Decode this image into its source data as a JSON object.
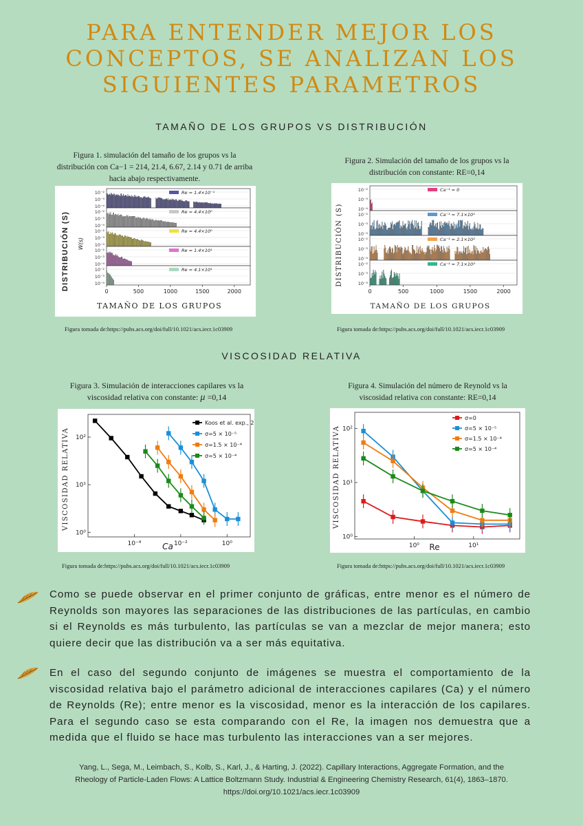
{
  "header": {
    "title_lines": [
      "PARA ENTENDER MEJOR LOS",
      "CONCEPTOS, SE ANALIZAN LOS",
      "SIGUIENTES PARAMETROS"
    ]
  },
  "sections": {
    "s1": "TAMAÑO DE LOS GRUPOS VS DISTRIBUCIÓN",
    "s2": "VISCOSIDAD RELATIVA"
  },
  "figures": {
    "f1": {
      "caption": "Figura 1. simulación del tamaño de los grupos vs la distribución con Ca−1 = 214, 21.4, 6.67, 2.14 y 0.71 de arriba hacia abajo respectivamente.",
      "ylabel": "DISTRIBUCIÓN (S)",
      "xlabel": "TAMAÑO DE LOS GRUPOS",
      "inner_ylabel": "W(s)",
      "legends": [
        "Re = 1.4×10⁻¹",
        "Re = 4.4×10⁰",
        "Re = 4.4×10⁰",
        "Re = 1.4×10¹",
        "Re = 4.1×10¹"
      ],
      "colors": [
        "#5555aa",
        "#c8c8c8",
        "#f0e040",
        "#e070d8",
        "#a8d8c0"
      ],
      "xticks": [
        "0",
        "500",
        "1000",
        "1500",
        "2000"
      ],
      "yticks": [
        "10⁻²",
        "10⁻³",
        "10⁻⁴"
      ],
      "source": "Figura tomada de:https://pubs.acs.org/doi/full/10.1021/acs.iecr.1c03909"
    },
    "f2": {
      "caption": "Figura 2. Simulación del tamaño de los grupos vs la distribución con constante: RE=0,14",
      "ylabel": "DISTRIBUCIÓN (S)",
      "xlabel": "TAMAÑO DE LOS GRUPOS",
      "legends": [
        "Ca⁻¹ = 0",
        "Ca⁻¹ = 7.1×10¹",
        "Ca⁻¹ = 2.1×10²",
        "Ca⁻¹ = 7.1×10²"
      ],
      "colors": [
        "#e04080",
        "#5a9ad0",
        "#f5a050",
        "#30b890"
      ],
      "xticks": [
        "0",
        "500",
        "1000",
        "1500",
        "2000"
      ],
      "yticks": [
        "10⁻²",
        "10⁻³",
        "10⁻⁴"
      ],
      "source": "Figura tomada de:https://pubs.acs.org/doi/full/10.1021/acs.iecr.1c03909"
    },
    "f3": {
      "caption_text": "Figura 3. Simulación  de interacciones capilares vs la viscosidad relativa con constante:",
      "caption_mu": "μ",
      "caption_end": " =0,14",
      "ylabel": "VISCOSIDAD RELATIVA",
      "xlabel": "Ca",
      "xticks": [
        "10⁻⁴",
        "10⁻²",
        "10⁰"
      ],
      "yticks": [
        "10²",
        "10¹",
        "10⁰"
      ],
      "legends": [
        "Koos et al. exp., 2014",
        "σ=5 × 10⁻⁵",
        "σ=1.5 × 10⁻⁴",
        "σ=5 × 10⁻⁴"
      ],
      "colors": [
        "#000000",
        "#1a8fd8",
        "#f07c10",
        "#1a8a1a"
      ],
      "source": "Figura tomada de:https://pubs.acs.org/doi/full/10.1021/acs.iecr.1c03909"
    },
    "f4": {
      "caption": "Figura  4. Simulación del número de Reynold vs la viscosidad relativa con constante: RE=0,14",
      "ylabel": "VISCOSIDAD RELATIVA",
      "xlabel": "Re",
      "xticks": [
        "10⁰",
        "10¹"
      ],
      "yticks": [
        "10²",
        "10¹",
        "10⁰"
      ],
      "legends": [
        "σ=0",
        "σ=5 × 10⁻⁵",
        "σ=1.5 × 10⁻⁴",
        "σ=5 × 10⁻⁴"
      ],
      "colors": [
        "#dd1a1a",
        "#1a8fd8",
        "#f07c10",
        "#1a8a1a"
      ],
      "source": "Figura tomada de:https://pubs.acs.org/doi/full/10.1021/acs.iecr.1c03909"
    }
  },
  "paragraphs": {
    "p1": "Como se puede observar en el primer conjunto de gráficas, entre menor es el número de Reynolds son mayores las separaciones de las distribuciones de las partículas, en cambio si el Reynolds es más turbulento, las partículas se van a mezclar de mejor manera; esto quiere decir que las distribución va a ser más equitativa.",
    "p2": "En el caso del segundo conjunto de imágenes se muestra el comportamiento de la viscosidad relativa bajo el parámetro adicional de interacciones capilares (Ca) y el número de Reynolds (Re); entre menor es la viscosidad, menor es la interacción de los capilares. Para el segundo caso se esta comparando con el Re, la imagen nos demuestra que a medida que el fluido se hace mas turbulento las interacciones van a ser mejores."
  },
  "reference": "Yang, L., Sega, M., Leimbach, S., Kolb, S., Karl, J., & Harting, J. (2022). Capillary Interactions, Aggregate Formation, and the Rheology of Particle-Laden Flows: A Lattice Boltzmann Study. Industrial & Engineering Chemistry Research, 61(4), 1863–1870. https://doi.org/10.1021/acs.iecr.1c03909",
  "chart_data": [
    {
      "type": "line",
      "title": "",
      "xlabel": "Ca",
      "ylabel": "VISCOSIDAD RELATIVA",
      "x_scale": "log",
      "y_scale": "log",
      "series": [
        {
          "name": "Koos et al. exp., 2014",
          "x": [
            2e-06,
            1e-05,
            5e-05,
            0.0002,
            0.0008,
            0.003,
            0.01,
            0.03,
            0.1
          ],
          "y": [
            220,
            95,
            38,
            15,
            6.5,
            3.5,
            2.8,
            2.3,
            1.8
          ]
        },
        {
          "name": "σ=5 × 10⁻⁵",
          "x": [
            0.003,
            0.01,
            0.03,
            0.1,
            0.3,
            1,
            3
          ],
          "y": [
            120,
            60,
            30,
            12,
            3,
            1.9,
            1.9
          ]
        },
        {
          "name": "σ=1.5 × 10⁻⁴",
          "x": [
            0.001,
            0.003,
            0.01,
            0.03,
            0.1,
            0.3
          ],
          "y": [
            60,
            30,
            15,
            7,
            3,
            1.8
          ]
        },
        {
          "name": "σ=5 × 10⁻⁴",
          "x": [
            0.0003,
            0.001,
            0.003,
            0.01,
            0.03,
            0.1
          ],
          "y": [
            50,
            25,
            12,
            6,
            3.5,
            2
          ]
        }
      ]
    },
    {
      "type": "line",
      "title": "",
      "xlabel": "Re",
      "ylabel": "VISCOSIDAD RELATIVA",
      "x_scale": "log",
      "y_scale": "log",
      "series": [
        {
          "name": "σ=0",
          "x": [
            0.14,
            0.44,
            1.4,
            4.4,
            14,
            41
          ],
          "y": [
            4.5,
            2.3,
            1.9,
            1.6,
            1.5,
            1.6
          ]
        },
        {
          "name": "σ=5 × 10⁻⁵",
          "x": [
            0.14,
            0.44,
            1.4,
            4.4,
            14,
            41
          ],
          "y": [
            90,
            30,
            7,
            1.8,
            1.7,
            1.7
          ]
        },
        {
          "name": "σ=1.5 × 10⁻⁴",
          "x": [
            0.14,
            0.44,
            1.4,
            4.4,
            14,
            41
          ],
          "y": [
            55,
            25,
            8,
            3,
            2,
            2
          ]
        },
        {
          "name": "σ=5 × 10⁻⁴",
          "x": [
            0.14,
            0.44,
            1.4,
            4.4,
            14,
            41
          ],
          "y": [
            28,
            13,
            7,
            4.5,
            3,
            2.5
          ]
        }
      ]
    }
  ]
}
